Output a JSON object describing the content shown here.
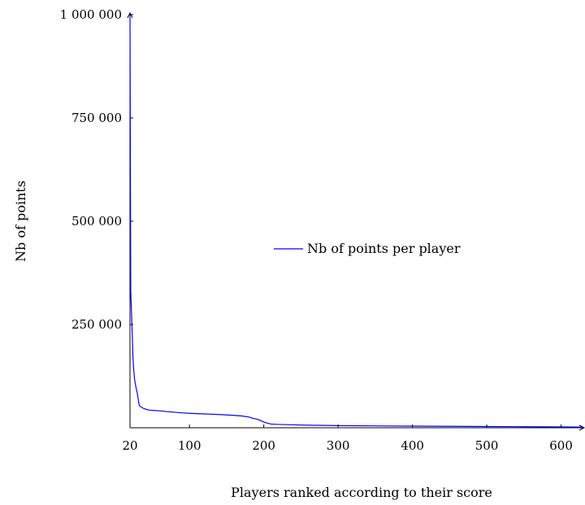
{
  "chart_data": {
    "type": "line",
    "title": "",
    "xlabel": "Players ranked according to their score",
    "ylabel": "Nb of points",
    "xlim": [
      20,
      630
    ],
    "ylim": [
      0,
      1000000
    ],
    "x_ticks": [
      20,
      100,
      200,
      300,
      400,
      500,
      600
    ],
    "x_tick_labels": [
      "20",
      "100",
      "200",
      "300",
      "400",
      "500",
      "600"
    ],
    "y_ticks": [
      250000,
      500000,
      750000,
      1000000
    ],
    "y_tick_labels": [
      "250 000",
      "500 000",
      "750 000",
      "1 000 000"
    ],
    "grid": false,
    "legend_position": "center-right",
    "series": [
      {
        "name": "Nb of points per player",
        "color": "#0000ff",
        "x": [
          20,
          21,
          22,
          23,
          24,
          25,
          26,
          27,
          28,
          29,
          30,
          31,
          32,
          33,
          35,
          38,
          41,
          45,
          50,
          60,
          70,
          80,
          90,
          100,
          120,
          140,
          160,
          170,
          180,
          185,
          190,
          195,
          200,
          205,
          210,
          220,
          240,
          260,
          300,
          350,
          400,
          450,
          500,
          550,
          600,
          630
        ],
        "y": [
          1000000,
          330000,
          280000,
          230000,
          170000,
          140000,
          120000,
          108000,
          98000,
          90000,
          82000,
          70000,
          58000,
          53000,
          50000,
          47000,
          45000,
          43000,
          42000,
          41000,
          39000,
          37500,
          36000,
          35000,
          33500,
          32000,
          30000,
          28500,
          26000,
          23000,
          21000,
          18000,
          14000,
          11000,
          9000,
          8000,
          7000,
          6200,
          5200,
          4500,
          4000,
          3500,
          3000,
          2500,
          2000,
          1500
        ]
      }
    ]
  }
}
